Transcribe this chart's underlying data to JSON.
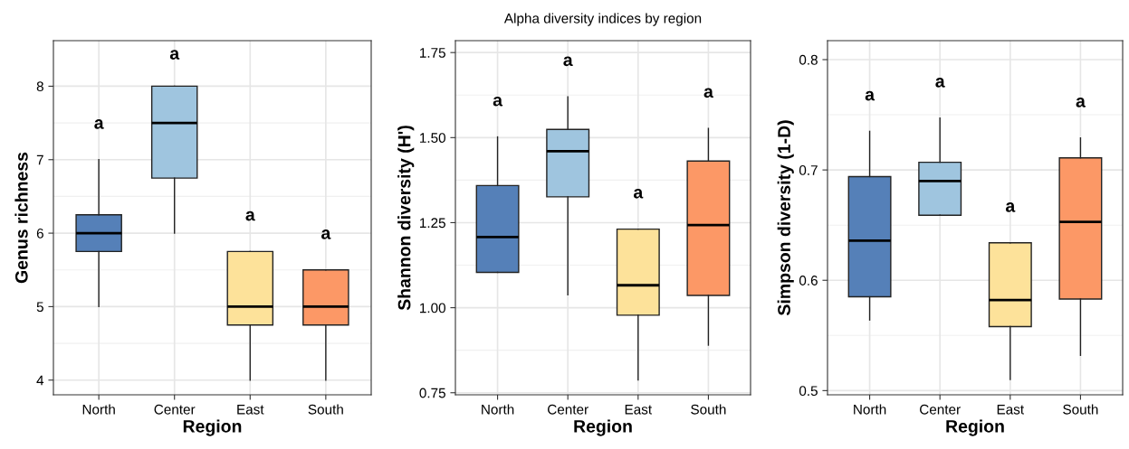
{
  "chart_data": [
    {
      "type": "box",
      "categories": [
        "North",
        "Center",
        "East",
        "South"
      ],
      "xlabel": "Region",
      "ylabel": "Genus richness",
      "ylim": [
        3.8,
        8.62
      ],
      "yticks": [
        4,
        5,
        6,
        7,
        8
      ],
      "grid": true,
      "colors": [
        "#5580b8",
        "#9fc5df",
        "#fde29a",
        "#fc9866"
      ],
      "boxes": [
        {
          "low": 5,
          "q1": 5.75,
          "median": 6,
          "q3": 6.25,
          "high": 7
        },
        {
          "low": 6,
          "q1": 6.75,
          "median": 7.5,
          "q3": 8,
          "high": 8
        },
        {
          "low": 4,
          "q1": 4.75,
          "median": 5,
          "q3": 5.75,
          "high": 5.75
        },
        {
          "low": 4,
          "q1": 4.75,
          "median": 5,
          "q3": 5.5,
          "high": 5.5
        }
      ],
      "annotations": [
        "a",
        "a",
        "a",
        "a"
      ]
    },
    {
      "type": "box",
      "title": "Alpha diversity indices by region",
      "categories": [
        "North",
        "Center",
        "East",
        "South"
      ],
      "xlabel": "Region",
      "ylabel": "Shannon diversity (H')",
      "ylim": [
        0.744,
        1.785
      ],
      "yticks": [
        {
          "value": 0.75,
          "label": "0.75"
        },
        {
          "value": 1.0,
          "label": "1.00"
        },
        {
          "value": 1.25,
          "label": "1.25"
        },
        {
          "value": 1.5,
          "label": "1.50"
        },
        {
          "value": 1.75,
          "label": "1.75"
        }
      ],
      "grid": true,
      "colors": [
        "#5580b8",
        "#9fc5df",
        "#fde29a",
        "#fc9866"
      ],
      "boxes": [
        {
          "low": 1.104,
          "q1": 1.104,
          "median": 1.208,
          "q3": 1.359,
          "high": 1.502
        },
        {
          "low": 1.038,
          "q1": 1.326,
          "median": 1.46,
          "q3": 1.524,
          "high": 1.62
        },
        {
          "low": 0.788,
          "q1": 0.978,
          "median": 1.066,
          "q3": 1.231,
          "high": 1.231
        },
        {
          "low": 0.89,
          "q1": 1.036,
          "median": 1.243,
          "q3": 1.431,
          "high": 1.527
        }
      ],
      "annotations": [
        "a",
        "a",
        "a",
        "a"
      ]
    },
    {
      "type": "box",
      "categories": [
        "North",
        "Center",
        "East",
        "South"
      ],
      "xlabel": "Region",
      "ylabel": "Simpson diversity (1-D)",
      "ylim": [
        0.4962,
        0.8172
      ],
      "yticks": [
        0.5,
        0.6,
        0.7,
        0.8
      ],
      "grid": true,
      "colors": [
        "#5580b8",
        "#9fc5df",
        "#fde29a",
        "#fc9866"
      ],
      "boxes": [
        {
          "low": 0.564,
          "q1": 0.585,
          "median": 0.636,
          "q3": 0.694,
          "high": 0.735
        },
        {
          "low": 0.659,
          "q1": 0.659,
          "median": 0.69,
          "q3": 0.707,
          "high": 0.747
        },
        {
          "low": 0.51,
          "q1": 0.558,
          "median": 0.582,
          "q3": 0.634,
          "high": 0.634
        },
        {
          "low": 0.532,
          "q1": 0.583,
          "median": 0.653,
          "q3": 0.711,
          "high": 0.729
        }
      ],
      "annotations": [
        "a",
        "a",
        "a",
        "a"
      ]
    }
  ]
}
